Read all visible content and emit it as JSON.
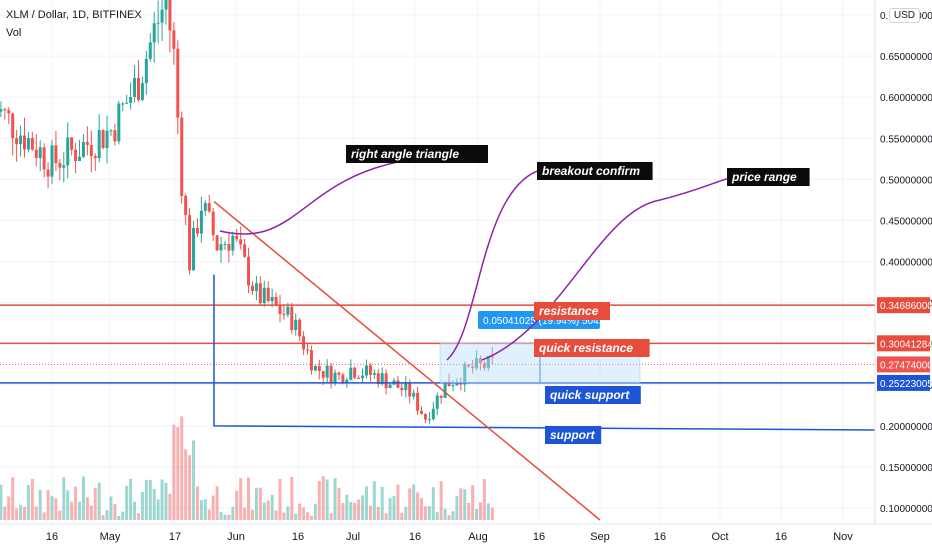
{
  "header": {
    "title": "XLM / Dollar, 1D, BITFINEX",
    "volume_label": "Vol",
    "currency": "USD"
  },
  "chart_data": {
    "type": "candlestick",
    "symbol": "XLM / Dollar",
    "interval": "1D",
    "exchange": "BITFINEX",
    "currency": "USD",
    "y_axis_ticks": [
      0.7,
      0.65,
      0.6,
      0.55,
      0.5,
      0.45,
      0.4,
      0.35,
      0.3,
      0.25,
      0.2,
      0.15,
      0.1
    ],
    "y_axis_tick_labels": [
      "0.70000000",
      "0.65000000",
      "0.60000000",
      "0.55000000",
      "0.50000000",
      "0.45000000",
      "0.40000000",
      "0.35000000",
      "0.30000000",
      "0.25000000",
      "0.20000000",
      "0.15000000",
      "0.10000000"
    ],
    "x_axis_labels": [
      "16",
      "May",
      "17",
      "Jun",
      "16",
      "Jul",
      "16",
      "Aug",
      "16",
      "Sep",
      "16",
      "Oct",
      "16",
      "Nov"
    ],
    "colors": {
      "up": "#26a69a",
      "down": "#ef5350",
      "resistance": "#e74c3c",
      "support": "#1e54d6",
      "annotation_line": "#8e24aa",
      "range_box": "#bbdefb"
    },
    "price_levels": [
      {
        "name": "resistance",
        "value": 0.34686,
        "label": "0.34686000",
        "color": "#e74c3c"
      },
      {
        "name": "quick resistance",
        "value": 0.30041284,
        "label": "0.30041284",
        "color": "#e74c3c"
      },
      {
        "name": "current price",
        "value": 0.27474,
        "label": "0.27474000",
        "color": "#ef5350"
      },
      {
        "name": "quick support",
        "value": 0.25223005,
        "label": "0.25223005",
        "color": "#1e54d6"
      },
      {
        "name": "support",
        "value": 0.2,
        "label": "0.20000000",
        "color": "#1e54d6"
      }
    ],
    "annotations": {
      "triangle": "right angle triangle",
      "breakout": "breakout confirm",
      "range": "price range",
      "resistance": "resistance",
      "quick_resistance": "quick resistance",
      "quick_support": "quick support",
      "support": "support"
    },
    "measure_label": "0.05041025 (19.94%) 5041025",
    "price_series": [
      {
        "date": "Apr 01",
        "close": 0.59
      },
      {
        "date": "Apr 16",
        "close": 0.52
      },
      {
        "date": "May 01",
        "close": 0.56
      },
      {
        "date": "May 08",
        "close": 0.62
      },
      {
        "date": "May 12",
        "close": 0.68
      },
      {
        "date": "May 15",
        "close": 0.72
      },
      {
        "date": "May 17",
        "close": 0.65
      },
      {
        "date": "May 19",
        "close": 0.5
      },
      {
        "date": "May 21",
        "close": 0.4
      },
      {
        "date": "May 24",
        "close": 0.47
      },
      {
        "date": "May 28",
        "close": 0.42
      },
      {
        "date": "Jun 01",
        "close": 0.43
      },
      {
        "date": "Jun 07",
        "close": 0.36
      },
      {
        "date": "Jun 16",
        "close": 0.33
      },
      {
        "date": "Jun 22",
        "close": 0.27
      },
      {
        "date": "Jun 28",
        "close": 0.26
      },
      {
        "date": "Jul 01",
        "close": 0.27
      },
      {
        "date": "Jul 08",
        "close": 0.26
      },
      {
        "date": "Jul 16",
        "close": 0.24
      },
      {
        "date": "Jul 20",
        "close": 0.21
      },
      {
        "date": "Jul 25",
        "close": 0.25
      },
      {
        "date": "Aug 01",
        "close": 0.27
      },
      {
        "date": "Aug 06",
        "close": 0.275
      }
    ]
  }
}
